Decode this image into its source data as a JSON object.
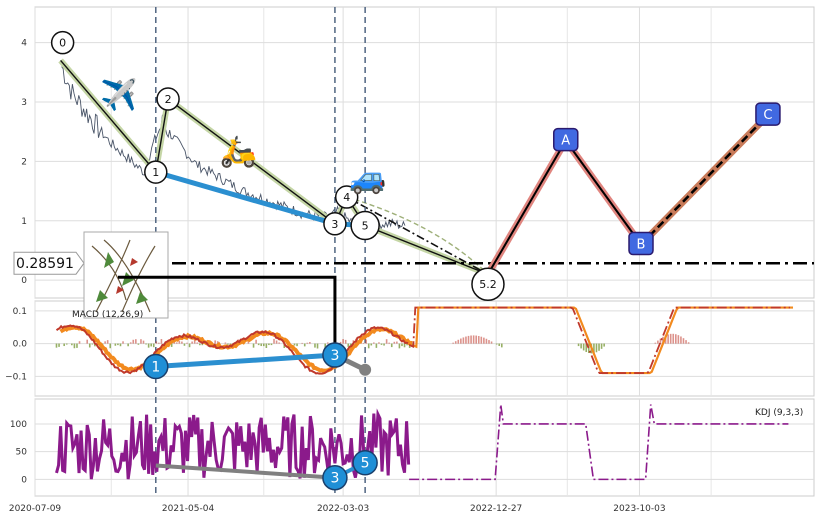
{
  "chart_data": [
    {
      "type": "line",
      "panel": "price",
      "ylim": [
        -0.3,
        4.6
      ],
      "yticks": [
        "0",
        "1",
        "2",
        "3",
        "4"
      ],
      "xticks": [
        "2020-07-09",
        "2021-05-04",
        "2022-03-03",
        "2022-12-27",
        "2023-10-03"
      ],
      "x_start": "2020-07-09",
      "x_end": "2024-09-08",
      "grid": true,
      "price_series": [
        [
          "2020-08-30",
          3.6
        ],
        [
          "2020-09-20",
          3.15
        ],
        [
          "2020-10-15",
          2.85
        ],
        [
          "2020-11-10",
          2.55
        ],
        [
          "2020-12-05",
          2.3
        ],
        [
          "2021-01-01",
          2.1
        ],
        [
          "2021-01-20",
          1.95
        ],
        [
          "2021-02-10",
          1.8
        ],
        [
          "2021-02-25",
          2.3
        ],
        [
          "2021-03-15",
          2.65
        ],
        [
          "2021-04-01",
          2.45
        ],
        [
          "2021-04-25",
          2.2
        ],
        [
          "2021-05-20",
          1.95
        ],
        [
          "2021-06-20",
          1.8
        ],
        [
          "2021-07-20",
          1.65
        ],
        [
          "2021-08-20",
          1.5
        ],
        [
          "2021-09-20",
          1.4
        ],
        [
          "2021-10-20",
          1.3
        ],
        [
          "2021-11-20",
          1.2
        ],
        [
          "2021-12-20",
          1.1
        ],
        [
          "2022-01-20",
          1.08
        ],
        [
          "2022-02-01",
          1.05
        ],
        [
          "2022-02-20",
          1.15
        ],
        [
          "2022-03-15",
          1.0
        ],
        [
          "2022-04-10",
          0.9
        ],
        [
          "2022-05-10",
          0.95
        ],
        [
          "2022-06-10",
          0.95
        ],
        [
          "2022-07-05",
          0.9
        ]
      ],
      "zigzag_points": [
        {
          "label": "0",
          "date": "2020-09-01",
          "value": 4.0
        },
        {
          "label": "1",
          "date": "2021-03-02",
          "value": 1.82
        },
        {
          "label": "2",
          "date": "2021-03-26",
          "value": 3.05
        },
        {
          "label": "3",
          "date": "2022-02-15",
          "value": 0.95
        },
        {
          "label": "4",
          "date": "2022-03-10",
          "value": 1.4
        },
        {
          "label": "5",
          "date": "2022-04-15",
          "value": 0.92
        },
        {
          "label": "5.2",
          "date": "2022-12-11",
          "value": 0.1
        }
      ],
      "abc_points": [
        {
          "label": "A",
          "date": "2023-05-12",
          "value": 2.35
        },
        {
          "label": "B",
          "date": "2023-10-06",
          "value": 0.6
        },
        {
          "label": "C",
          "date": "2024-06-10",
          "value": 2.78
        }
      ],
      "hline": {
        "value": 0.28591,
        "label": "0.28591"
      },
      "vlines": [
        "2021-03-02",
        "2022-02-15",
        "2022-04-15"
      ],
      "emoji": {
        "plane": "✈️",
        "scooter": "🛵",
        "car": "🚙"
      }
    },
    {
      "type": "line",
      "panel": "macd",
      "label": "MACD (12,26,9)",
      "ylim": [
        -0.16,
        0.13
      ],
      "yticks": [
        "0.1",
        "0.0",
        "−0.1"
      ],
      "markers": [
        {
          "label": "1",
          "date": "2021-03-02",
          "value": -0.07
        },
        {
          "label": "3",
          "date": "2022-02-15",
          "value": -0.035
        },
        {
          "label": "",
          "date": "2022-04-15",
          "value": -0.08
        }
      ]
    },
    {
      "type": "line",
      "panel": "kdj",
      "label": "KDJ (9,3,3)",
      "ylim": [
        -30,
        145
      ],
      "yticks": [
        "100",
        "50",
        "0"
      ],
      "markers": [
        {
          "label": "3",
          "date": "2022-02-15",
          "value": 3
        },
        {
          "label": "5",
          "date": "2022-04-15",
          "value": 30
        }
      ]
    }
  ]
}
